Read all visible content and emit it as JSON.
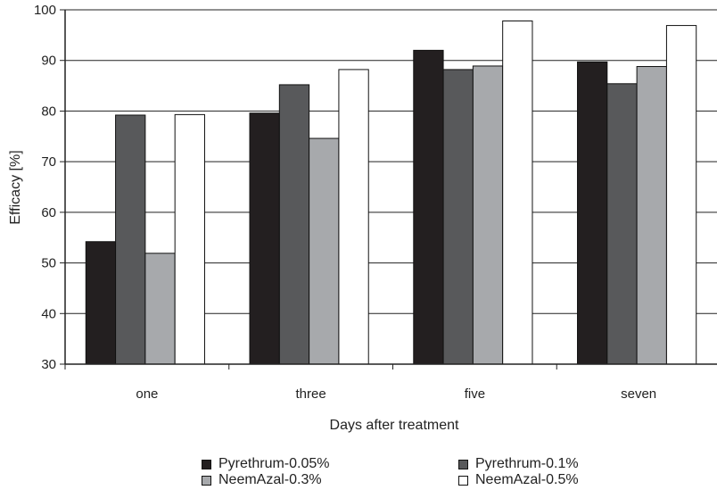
{
  "chart_data": {
    "type": "bar",
    "categories": [
      "one",
      "three",
      "five",
      "seven"
    ],
    "series": [
      {
        "name": "Pyrethrum-0.05%",
        "values": [
          54.2,
          79.6,
          92.0,
          89.7
        ],
        "color": "#231f20"
      },
      {
        "name": "Pyrethrum-0.1%",
        "values": [
          79.2,
          85.2,
          88.2,
          85.4
        ],
        "color": "#58595b"
      },
      {
        "name": "NeemAzal-0.3%",
        "values": [
          51.9,
          74.6,
          88.9,
          88.8
        ],
        "color": "#a7a9ac"
      },
      {
        "name": "NeemAzal-0.5%",
        "values": [
          79.3,
          88.2,
          97.8,
          96.9
        ],
        "color": "#ffffff"
      }
    ],
    "xlabel": "Days after treatment",
    "ylabel": "Efficacy [%]",
    "ylim": [
      30,
      100
    ],
    "yticks": [
      30,
      40,
      50,
      60,
      70,
      80,
      90,
      100
    ],
    "grid": true,
    "legend_position": "bottom"
  }
}
